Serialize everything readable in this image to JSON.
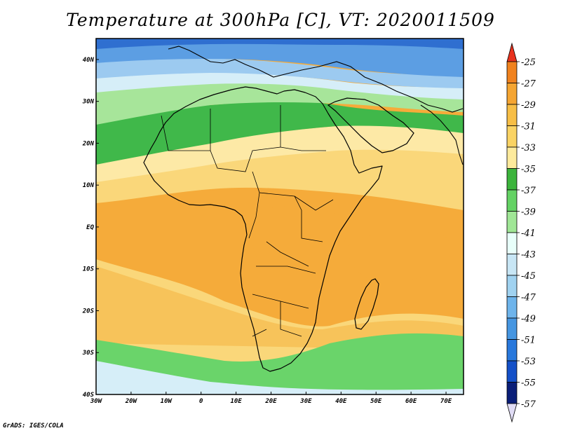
{
  "title": "Temperature at 300hPa [C], VT: 2020011509",
  "credit": "GrADS: IGES/COLA",
  "lon_ticks": [
    "30W",
    "20W",
    "10W",
    "0",
    "10E",
    "20E",
    "30E",
    "40E",
    "50E",
    "60E",
    "70E"
  ],
  "lat_ticks": [
    "40N",
    "30N",
    "20N",
    "10N",
    "EQ",
    "10S",
    "20S",
    "30S",
    "40S"
  ],
  "colorbar": {
    "labels": [
      "-25",
      "-27",
      "-29",
      "-31",
      "-33",
      "-35",
      "-37",
      "-39",
      "-41",
      "-43",
      "-45",
      "-47",
      "-49",
      "-51",
      "-53",
      "-55",
      "-57"
    ],
    "colors": [
      "#e63c14",
      "#f0821e",
      "#f5a532",
      "#f7be46",
      "#fad364",
      "#fdea9c",
      "#3cb43c",
      "#64d264",
      "#a0e696",
      "#e8fffa",
      "#c8e6f5",
      "#a0d2f0",
      "#6eb4eb",
      "#4696e1",
      "#2878dc",
      "#1450c8",
      "#0a1e78"
    ]
  },
  "map": {
    "extent": {
      "lon_min": -30,
      "lon_max": 75,
      "lat_min": -40,
      "lat_max": 45
    },
    "field_colors": {
      "blue_deep": "#2f6fd0",
      "blue_mid": "#5c9ee3",
      "blue_light": "#9ccaf0",
      "blue_pale": "#d6eef8",
      "green_light": "#a7e59a",
      "green_mid": "#6ad46a",
      "green_dark": "#40b84a",
      "yellow_pale": "#fde9a6",
      "yellow": "#fad77a",
      "orange_light": "#f7c35a",
      "orange": "#f5ab3a"
    }
  }
}
